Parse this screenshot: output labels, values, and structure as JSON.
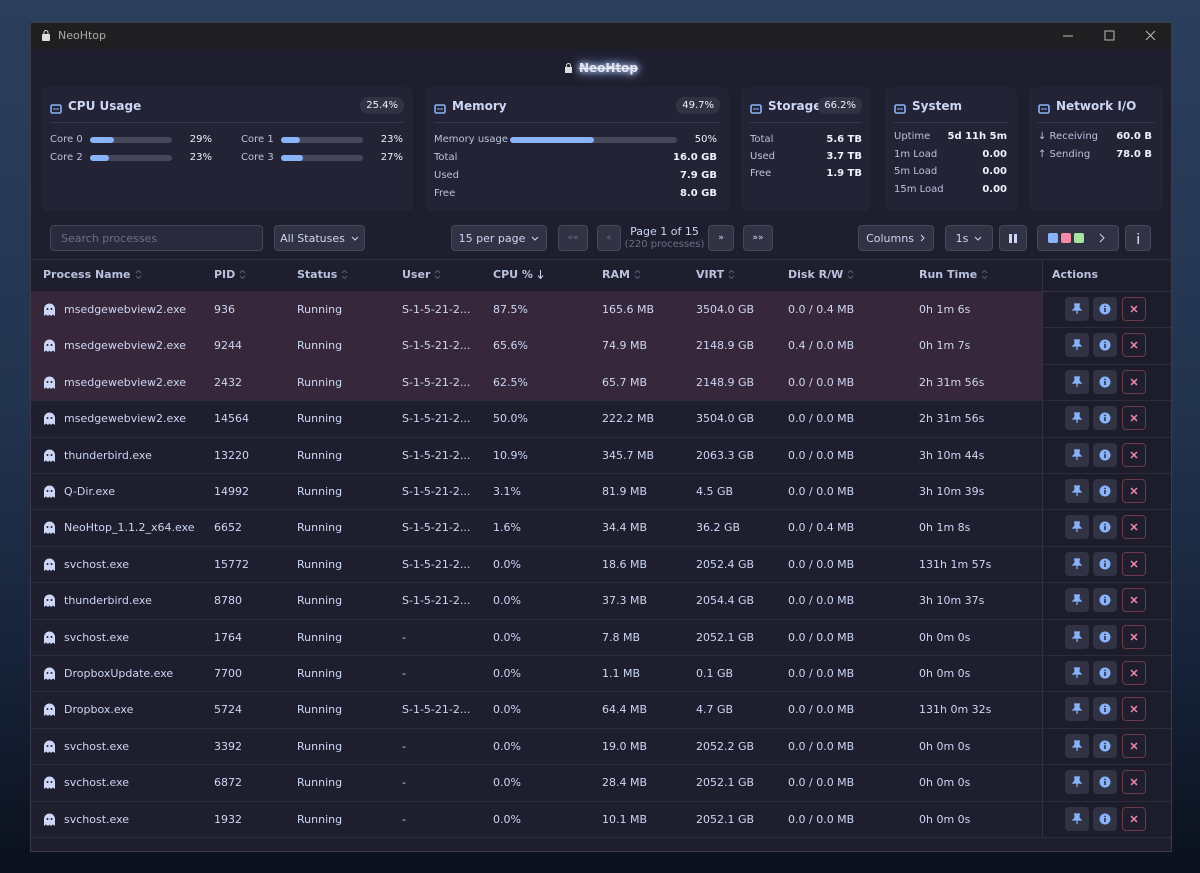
{
  "window": {
    "title": "NeoHtop"
  },
  "header": {
    "title": "NeoHtop"
  },
  "stats": {
    "cpu": {
      "title": "CPU Usage",
      "badge": "25.4%",
      "cores": [
        {
          "name": "Core 0",
          "value": 29,
          "value_label": "29%"
        },
        {
          "name": "Core 1",
          "value": 23,
          "value_label": "23%"
        },
        {
          "name": "Core 2",
          "value": 23,
          "value_label": "23%"
        },
        {
          "name": "Core 3",
          "value": 27,
          "value_label": "27%"
        }
      ]
    },
    "memory": {
      "title": "Memory",
      "badge": "49.7%",
      "usage": {
        "name": "Memory usage",
        "value": 50,
        "value_label": "50%"
      },
      "rows": [
        [
          "Total",
          "16.0 GB"
        ],
        [
          "Used",
          "7.9 GB"
        ],
        [
          "Free",
          "8.0 GB"
        ]
      ]
    },
    "storage": {
      "title": "Storage",
      "badge": "66.2%",
      "rows": [
        [
          "Total",
          "5.6 TB"
        ],
        [
          "Used",
          "3.7 TB"
        ],
        [
          "Free",
          "1.9 TB"
        ]
      ]
    },
    "system": {
      "title": "System",
      "rows": [
        [
          "Uptime",
          "5d 11h 5m"
        ],
        [
          "1m Load",
          "0.00"
        ],
        [
          "5m Load",
          "0.00"
        ],
        [
          "15m Load",
          "0.00"
        ]
      ]
    },
    "network": {
      "title": "Network I/O",
      "rows": [
        [
          "↓ Receiving",
          "60.0 B"
        ],
        [
          "↑ Sending",
          "78.0 B"
        ]
      ]
    }
  },
  "toolbar": {
    "search_placeholder": "Search processes",
    "status_filter": "All Statuses",
    "per_page": "15 per page",
    "first": "««",
    "prev": "«",
    "page": "Page 1 of 15",
    "total": "(220 processes)",
    "next": "»",
    "last": "»»",
    "columns": "Columns",
    "refresh": "1s"
  },
  "table": {
    "columns": [
      "Process Name",
      "PID",
      "Status",
      "User",
      "CPU %",
      "RAM",
      "VIRT",
      "Disk R/W",
      "Run Time",
      "Actions"
    ],
    "rows": [
      [
        "msedgewebview2.exe",
        "936",
        "Running",
        "S-1-5-21-2...",
        "87.5%",
        "165.6 MB",
        "3504.0 GB",
        "0.0 / 0.4 MB",
        "0h 1m 6s"
      ],
      [
        "msedgewebview2.exe",
        "9244",
        "Running",
        "S-1-5-21-2...",
        "65.6%",
        "74.9 MB",
        "2148.9 GB",
        "0.4 / 0.0 MB",
        "0h 1m 7s"
      ],
      [
        "msedgewebview2.exe",
        "2432",
        "Running",
        "S-1-5-21-2...",
        "62.5%",
        "65.7 MB",
        "2148.9 GB",
        "0.0 / 0.0 MB",
        "2h 31m 56s"
      ],
      [
        "msedgewebview2.exe",
        "14564",
        "Running",
        "S-1-5-21-2...",
        "50.0%",
        "222.2 MB",
        "3504.0 GB",
        "0.0 / 0.0 MB",
        "2h 31m 56s"
      ],
      [
        "thunderbird.exe",
        "13220",
        "Running",
        "S-1-5-21-2...",
        "10.9%",
        "345.7 MB",
        "2063.3 GB",
        "0.0 / 0.0 MB",
        "3h 10m 44s"
      ],
      [
        "Q-Dir.exe",
        "14992",
        "Running",
        "S-1-5-21-2...",
        "3.1%",
        "81.9 MB",
        "4.5 GB",
        "0.0 / 0.0 MB",
        "3h 10m 39s"
      ],
      [
        "NeoHtop_1.1.2_x64.exe",
        "6652",
        "Running",
        "S-1-5-21-2...",
        "1.6%",
        "34.4 MB",
        "36.2 GB",
        "0.0 / 0.4 MB",
        "0h 1m 8s"
      ],
      [
        "svchost.exe",
        "15772",
        "Running",
        "S-1-5-21-2...",
        "0.0%",
        "18.6 MB",
        "2052.4 GB",
        "0.0 / 0.0 MB",
        "131h 1m 57s"
      ],
      [
        "thunderbird.exe",
        "8780",
        "Running",
        "S-1-5-21-2...",
        "0.0%",
        "37.3 MB",
        "2054.4 GB",
        "0.0 / 0.0 MB",
        "3h 10m 37s"
      ],
      [
        "svchost.exe",
        "1764",
        "Running",
        "-",
        "0.0%",
        "7.8 MB",
        "2052.1 GB",
        "0.0 / 0.0 MB",
        "0h 0m 0s"
      ],
      [
        "DropboxUpdate.exe",
        "7700",
        "Running",
        "-",
        "0.0%",
        "1.1 MB",
        "0.1 GB",
        "0.0 / 0.0 MB",
        "0h 0m 0s"
      ],
      [
        "Dropbox.exe",
        "5724",
        "Running",
        "S-1-5-21-2...",
        "0.0%",
        "64.4 MB",
        "4.7 GB",
        "0.0 / 0.0 MB",
        "131h 0m 32s"
      ],
      [
        "svchost.exe",
        "3392",
        "Running",
        "-",
        "0.0%",
        "19.0 MB",
        "2052.2 GB",
        "0.0 / 0.0 MB",
        "0h 0m 0s"
      ],
      [
        "svchost.exe",
        "6872",
        "Running",
        "-",
        "0.0%",
        "28.4 MB",
        "2052.1 GB",
        "0.0 / 0.0 MB",
        "0h 0m 0s"
      ],
      [
        "svchost.exe",
        "1932",
        "Running",
        "-",
        "0.0%",
        "10.1 MB",
        "2052.1 GB",
        "0.0 / 0.0 MB",
        "0h 0m 0s"
      ]
    ]
  }
}
